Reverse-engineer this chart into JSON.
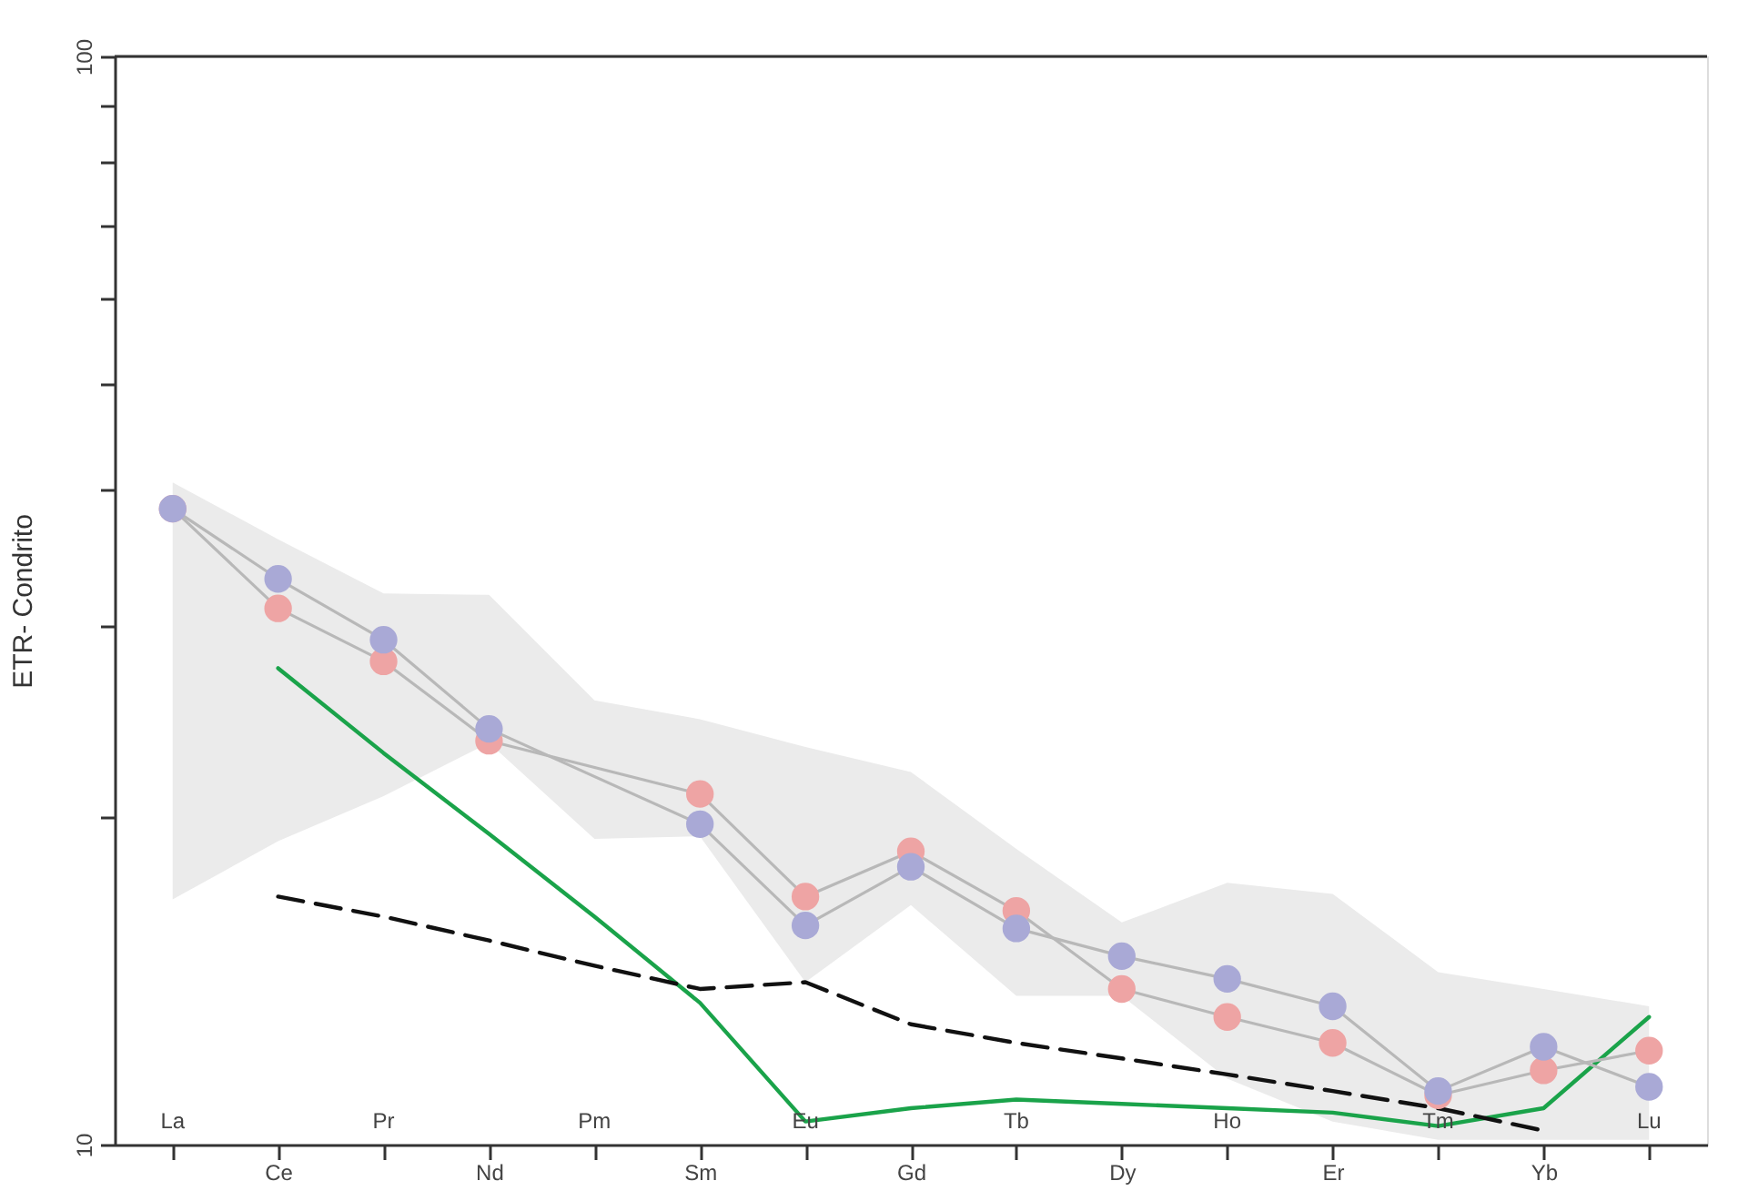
{
  "chart_data": {
    "type": "line",
    "ylabel": "ETR- Condrito",
    "log": "y",
    "grid": false,
    "categories": [
      "La",
      "Ce",
      "Pr",
      "Nd",
      "Pm",
      "Sm",
      "Eu",
      "Gd",
      "Tb",
      "Dy",
      "Ho",
      "Er",
      "Tm",
      "Yb",
      "Lu"
    ],
    "ylim": [
      10,
      100
    ],
    "yticks": [
      {
        "value": 10,
        "label": "10"
      },
      {
        "value": 20,
        "label": null
      },
      {
        "value": 30,
        "label": null
      },
      {
        "value": 40,
        "label": null
      },
      {
        "value": 50,
        "label": null
      },
      {
        "value": 60,
        "label": null
      },
      {
        "value": 70,
        "label": null
      },
      {
        "value": 80,
        "label": null
      },
      {
        "value": 90,
        "label": null
      },
      {
        "value": 100,
        "label": "100"
      }
    ],
    "series": [
      {
        "type": "area",
        "color": "#ebebeb",
        "values": [
          null,
          null,
          null,
          null,
          null,
          null,
          null,
          null,
          null,
          null,
          null,
          null,
          null,
          null,
          null
        ],
        "lower": [
          16.8,
          19.0,
          20.9,
          23.4,
          19.1,
          19.2,
          14.1,
          16.6,
          13.7,
          13.7,
          11.5,
          10.5,
          10.1,
          10.1,
          10.1
        ],
        "upper": [
          40.6,
          36,
          32.1,
          32,
          25.6,
          24.6,
          23.2,
          22.0,
          18.7,
          16.0,
          17.4,
          17.0,
          14.4,
          13.9,
          13.4
        ]
      },
      {
        "color": "#1aa34a",
        "marker": "none",
        "line_style": "solid",
        "values": [
          null,
          27.4,
          22.9,
          19.3,
          16.2,
          13.5,
          10.5,
          10.8,
          11.0,
          10.9,
          10.8,
          10.7,
          10.4,
          10.8,
          13.1
        ]
      },
      {
        "color": "#111111",
        "marker": "none",
        "line_style": "dashed",
        "values": [
          null,
          16.9,
          16.2,
          15.4,
          14.6,
          13.9,
          14.1,
          12.9,
          12.4,
          12.0,
          11.6,
          11.2,
          10.8,
          10.3,
          null
        ]
      },
      {
        "color": "#eea4a4",
        "marker": "circle",
        "line_style": "solid",
        "values": [
          38.4,
          31.1,
          27.8,
          23.5,
          null,
          21.0,
          16.9,
          18.6,
          16.4,
          13.9,
          13.1,
          12.4,
          11.1,
          11.7,
          12.2
        ]
      },
      {
        "color": "#a9a9d6",
        "marker": "circle",
        "line_style": "solid",
        "values": [
          38.4,
          33.1,
          29.1,
          24.1,
          null,
          19.7,
          15.9,
          18.0,
          15.8,
          14.9,
          14.2,
          13.4,
          11.2,
          12.3,
          11.3
        ]
      }
    ]
  }
}
